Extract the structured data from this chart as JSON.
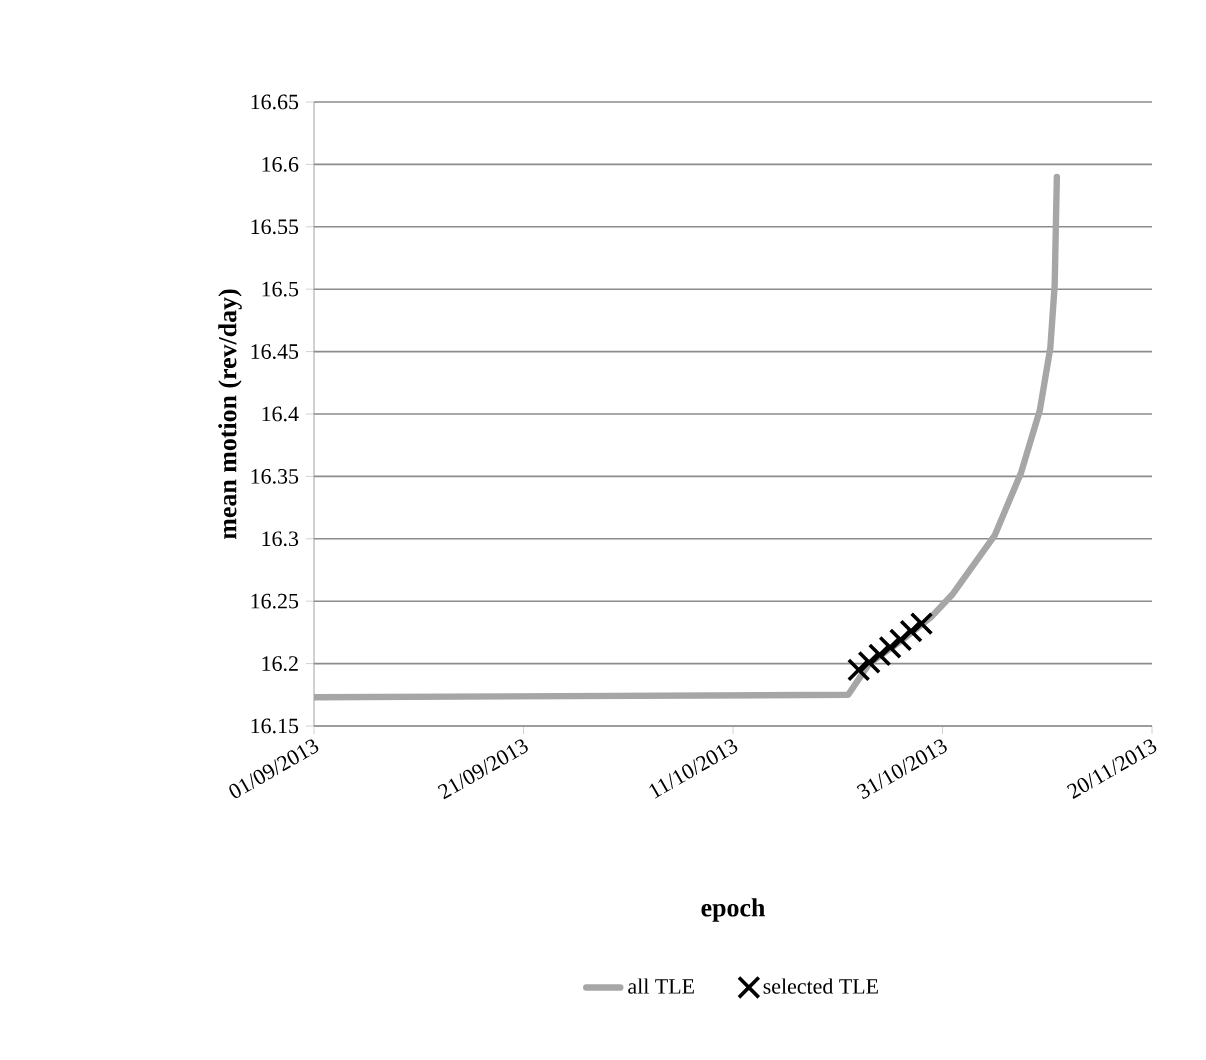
{
  "chart_data": {
    "type": "line",
    "xlabel": "epoch",
    "ylabel": "mean motion (rev/day)",
    "xlim": [
      "2013-09-01",
      "2013-11-20"
    ],
    "xticks": [
      {
        "value": "2013-09-01",
        "label": "01/09/2013"
      },
      {
        "value": "2013-09-21",
        "label": "21/09/2013"
      },
      {
        "value": "2013-10-11",
        "label": "11/10/2013"
      },
      {
        "value": "2013-10-31",
        "label": "31/10/2013"
      },
      {
        "value": "2013-11-20",
        "label": "20/11/2013"
      }
    ],
    "ylim": [
      16.15,
      16.65
    ],
    "yticks": [
      16.15,
      16.2,
      16.25,
      16.3,
      16.35,
      16.4,
      16.45,
      16.5,
      16.55,
      16.6,
      16.65
    ],
    "grid": "y",
    "legend": "bottom",
    "series": [
      {
        "name": "all TLE",
        "type": "line",
        "color": "#a6a6a6",
        "marker": "none",
        "line_style": "solid",
        "x": [
          "2013-09-01",
          "2013-10-22",
          "2013-10-24",
          "2013-10-27",
          "2013-10-30",
          "2013-11-01",
          "2013-11-05",
          "2013-11-07T12:00",
          "2013-11-09T07:00",
          "2013-11-10T07:00",
          "2013-11-10T17:00",
          "2013-11-10T22:00"
        ],
        "values": [
          16.173,
          16.175,
          16.2,
          16.218,
          16.238,
          16.256,
          16.303,
          16.353,
          16.403,
          16.453,
          16.503,
          16.59
        ]
      },
      {
        "name": "selected TLE",
        "type": "scatter",
        "color": "#000000",
        "marker": "cross",
        "x": [
          "2013-10-23",
          "2013-10-24",
          "2013-10-25",
          "2013-10-26",
          "2013-10-27",
          "2013-10-28",
          "2013-10-29"
        ],
        "values": [
          16.195,
          16.201,
          16.207,
          16.213,
          16.219,
          16.226,
          16.232
        ]
      }
    ]
  }
}
